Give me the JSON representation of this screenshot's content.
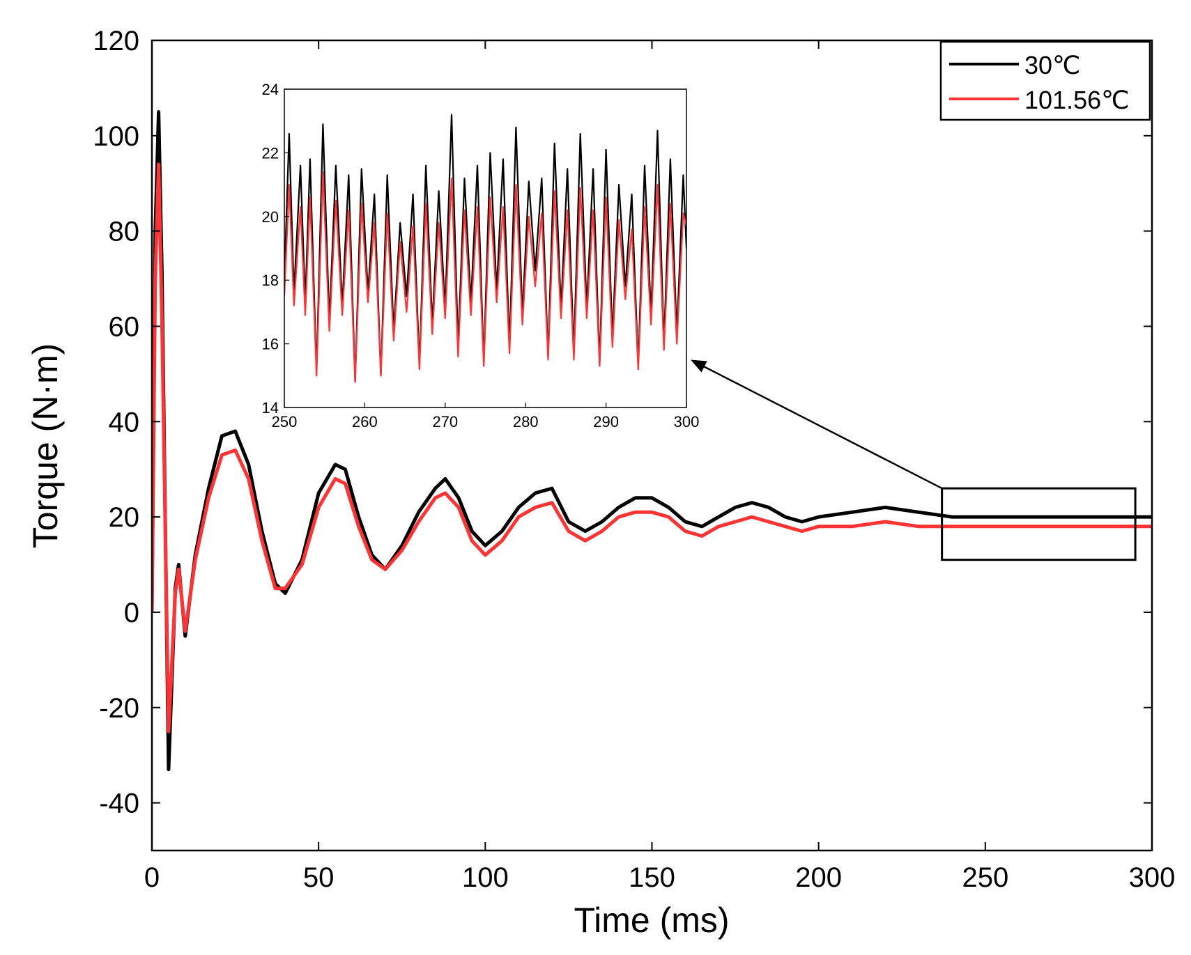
{
  "chart_data": {
    "type": "line",
    "xlabel": "Time (ms)",
    "ylabel": "Torque (N·m)",
    "xlim": [
      0,
      300
    ],
    "ylim": [
      -50,
      120
    ],
    "xticks": [
      "0",
      "50",
      "100",
      "150",
      "200",
      "250",
      "300"
    ],
    "yticks": [
      "-40",
      "-20",
      "0",
      "20",
      "40",
      "60",
      "80",
      "100",
      "120"
    ],
    "legend_position": "top-right",
    "series": [
      {
        "name": "30℃",
        "color": "#000000",
        "x": [
          0,
          1,
          2,
          3,
          5,
          7,
          8,
          10,
          13,
          17,
          21,
          25,
          29,
          33,
          37,
          40,
          45,
          50,
          55,
          58,
          62,
          66,
          70,
          75,
          80,
          85,
          88,
          92,
          96,
          100,
          105,
          110,
          115,
          120,
          125,
          130,
          135,
          140,
          145,
          150,
          155,
          160,
          165,
          170,
          175,
          180,
          185,
          190,
          195,
          200,
          210,
          220,
          230,
          240,
          250,
          260,
          270,
          280,
          290,
          300
        ],
        "y": [
          0,
          80,
          105,
          72,
          -33,
          5,
          10,
          -5,
          12,
          26,
          37,
          38,
          31,
          17,
          6,
          4,
          11,
          25,
          31,
          30,
          20,
          12,
          9,
          14,
          21,
          26,
          28,
          24,
          17,
          14,
          17,
          22,
          25,
          26,
          19,
          17,
          19,
          22,
          24,
          24,
          22,
          19,
          18,
          20,
          22,
          23,
          22,
          20,
          19,
          20,
          21,
          22,
          21,
          20,
          20,
          20,
          20,
          20,
          20,
          20
        ]
      },
      {
        "name": "101.56℃",
        "color": "#ff3333",
        "x": [
          0,
          1,
          2,
          3,
          5,
          7,
          8,
          10,
          13,
          17,
          21,
          25,
          29,
          33,
          37,
          40,
          45,
          50,
          55,
          58,
          62,
          66,
          70,
          75,
          80,
          85,
          88,
          92,
          96,
          100,
          105,
          110,
          115,
          120,
          125,
          130,
          135,
          140,
          145,
          150,
          155,
          160,
          165,
          170,
          175,
          180,
          185,
          190,
          195,
          200,
          210,
          220,
          230,
          240,
          250,
          260,
          270,
          280,
          290,
          300
        ],
        "y": [
          0,
          70,
          94,
          62,
          -25,
          4,
          9,
          -4,
          11,
          24,
          33,
          34,
          28,
          15,
          5,
          5,
          10,
          22,
          28,
          27,
          18,
          11,
          9,
          13,
          19,
          24,
          25,
          22,
          15,
          12,
          15,
          20,
          22,
          23,
          17,
          15,
          17,
          20,
          21,
          21,
          20,
          17,
          16,
          18,
          19,
          20,
          19,
          18,
          17,
          18,
          18,
          19,
          18,
          18,
          18,
          18,
          18,
          18,
          18,
          18
        ]
      }
    ],
    "zoom_box": {
      "x_range": [
        237,
        295
      ],
      "y_range": [
        11,
        26
      ]
    },
    "inset": {
      "xlim": [
        250,
        300
      ],
      "ylim": [
        14,
        24
      ],
      "xticks": [
        "250",
        "260",
        "270",
        "280",
        "290",
        "300"
      ],
      "yticks": [
        "14",
        "16",
        "18",
        "20",
        "22",
        "24"
      ],
      "series": [
        {
          "name": "30℃",
          "color": "#000000",
          "x": [
            250,
            250.6,
            251.2,
            252,
            252.6,
            253.2,
            254,
            254.8,
            255.6,
            256.4,
            257.2,
            258,
            258.8,
            259.6,
            260.4,
            261.2,
            262,
            262.8,
            263.6,
            264.4,
            265.2,
            266,
            266.8,
            267.6,
            268.4,
            269.2,
            270,
            270.8,
            271.6,
            272.4,
            273.2,
            274,
            274.8,
            275.6,
            276.4,
            277.2,
            278,
            278.8,
            279.6,
            280.4,
            281.2,
            282,
            282.8,
            283.6,
            284.4,
            285.2,
            286,
            286.8,
            287.6,
            288.4,
            289.2,
            290,
            290.8,
            291.6,
            292.4,
            293.2,
            294,
            294.8,
            295.6,
            296.4,
            297.2,
            298,
            298.8,
            299.6,
            300
          ],
          "y": [
            18.0,
            22.6,
            17.6,
            21.6,
            17.3,
            21.8,
            15.1,
            22.9,
            16.7,
            21.6,
            17.2,
            21.3,
            14.8,
            21.5,
            17.6,
            20.7,
            15.0,
            21.3,
            16.4,
            19.8,
            17.5,
            20.7,
            15.3,
            21.6,
            16.6,
            20.8,
            17.1,
            23.2,
            15.9,
            21.2,
            17.3,
            21.6,
            15.4,
            22.0,
            17.7,
            21.8,
            15.9,
            22.8,
            16.9,
            21.1,
            18.3,
            21.2,
            15.6,
            22.3,
            17.1,
            21.5,
            15.7,
            22.6,
            17.1,
            21.5,
            15.4,
            22.1,
            16.2,
            21.0,
            17.8,
            20.7,
            15.3,
            21.6,
            16.9,
            22.7,
            16.0,
            21.8,
            16.3,
            21.3,
            19.0
          ]
        },
        {
          "name": "101.56℃",
          "color": "#ff3333",
          "x": [
            250,
            250.6,
            251.2,
            252,
            252.6,
            253.2,
            254,
            254.8,
            255.6,
            256.4,
            257.2,
            258,
            258.8,
            259.6,
            260.4,
            261.2,
            262,
            262.8,
            263.6,
            264.4,
            265.2,
            266,
            266.8,
            267.6,
            268.4,
            269.2,
            270,
            270.8,
            271.6,
            272.4,
            273.2,
            274,
            274.8,
            275.6,
            276.4,
            277.2,
            278,
            278.8,
            279.6,
            280.4,
            281.2,
            282,
            282.8,
            283.6,
            284.4,
            285.2,
            286,
            286.8,
            287.6,
            288.4,
            289.2,
            290,
            290.8,
            291.6,
            292.4,
            293.2,
            294,
            294.8,
            295.6,
            296.4,
            297.2,
            298,
            298.8,
            299.6,
            300
          ],
          "y": [
            17.5,
            21.0,
            17.2,
            20.3,
            16.9,
            20.6,
            15.0,
            21.4,
            16.4,
            20.5,
            16.9,
            20.2,
            14.8,
            20.4,
            17.3,
            19.8,
            15.0,
            20.1,
            16.1,
            19.2,
            17.0,
            19.7,
            15.2,
            20.4,
            16.3,
            19.8,
            16.8,
            21.2,
            15.6,
            20.2,
            16.9,
            20.3,
            15.3,
            20.6,
            17.3,
            20.3,
            15.7,
            21.0,
            16.6,
            20.0,
            17.8,
            20.1,
            15.5,
            20.8,
            16.8,
            20.2,
            15.5,
            20.9,
            16.8,
            20.2,
            15.3,
            20.6,
            15.9,
            19.9,
            17.4,
            19.6,
            15.2,
            20.3,
            16.6,
            21.0,
            15.8,
            20.4,
            16.0,
            20.1,
            19.7
          ]
        }
      ]
    }
  }
}
